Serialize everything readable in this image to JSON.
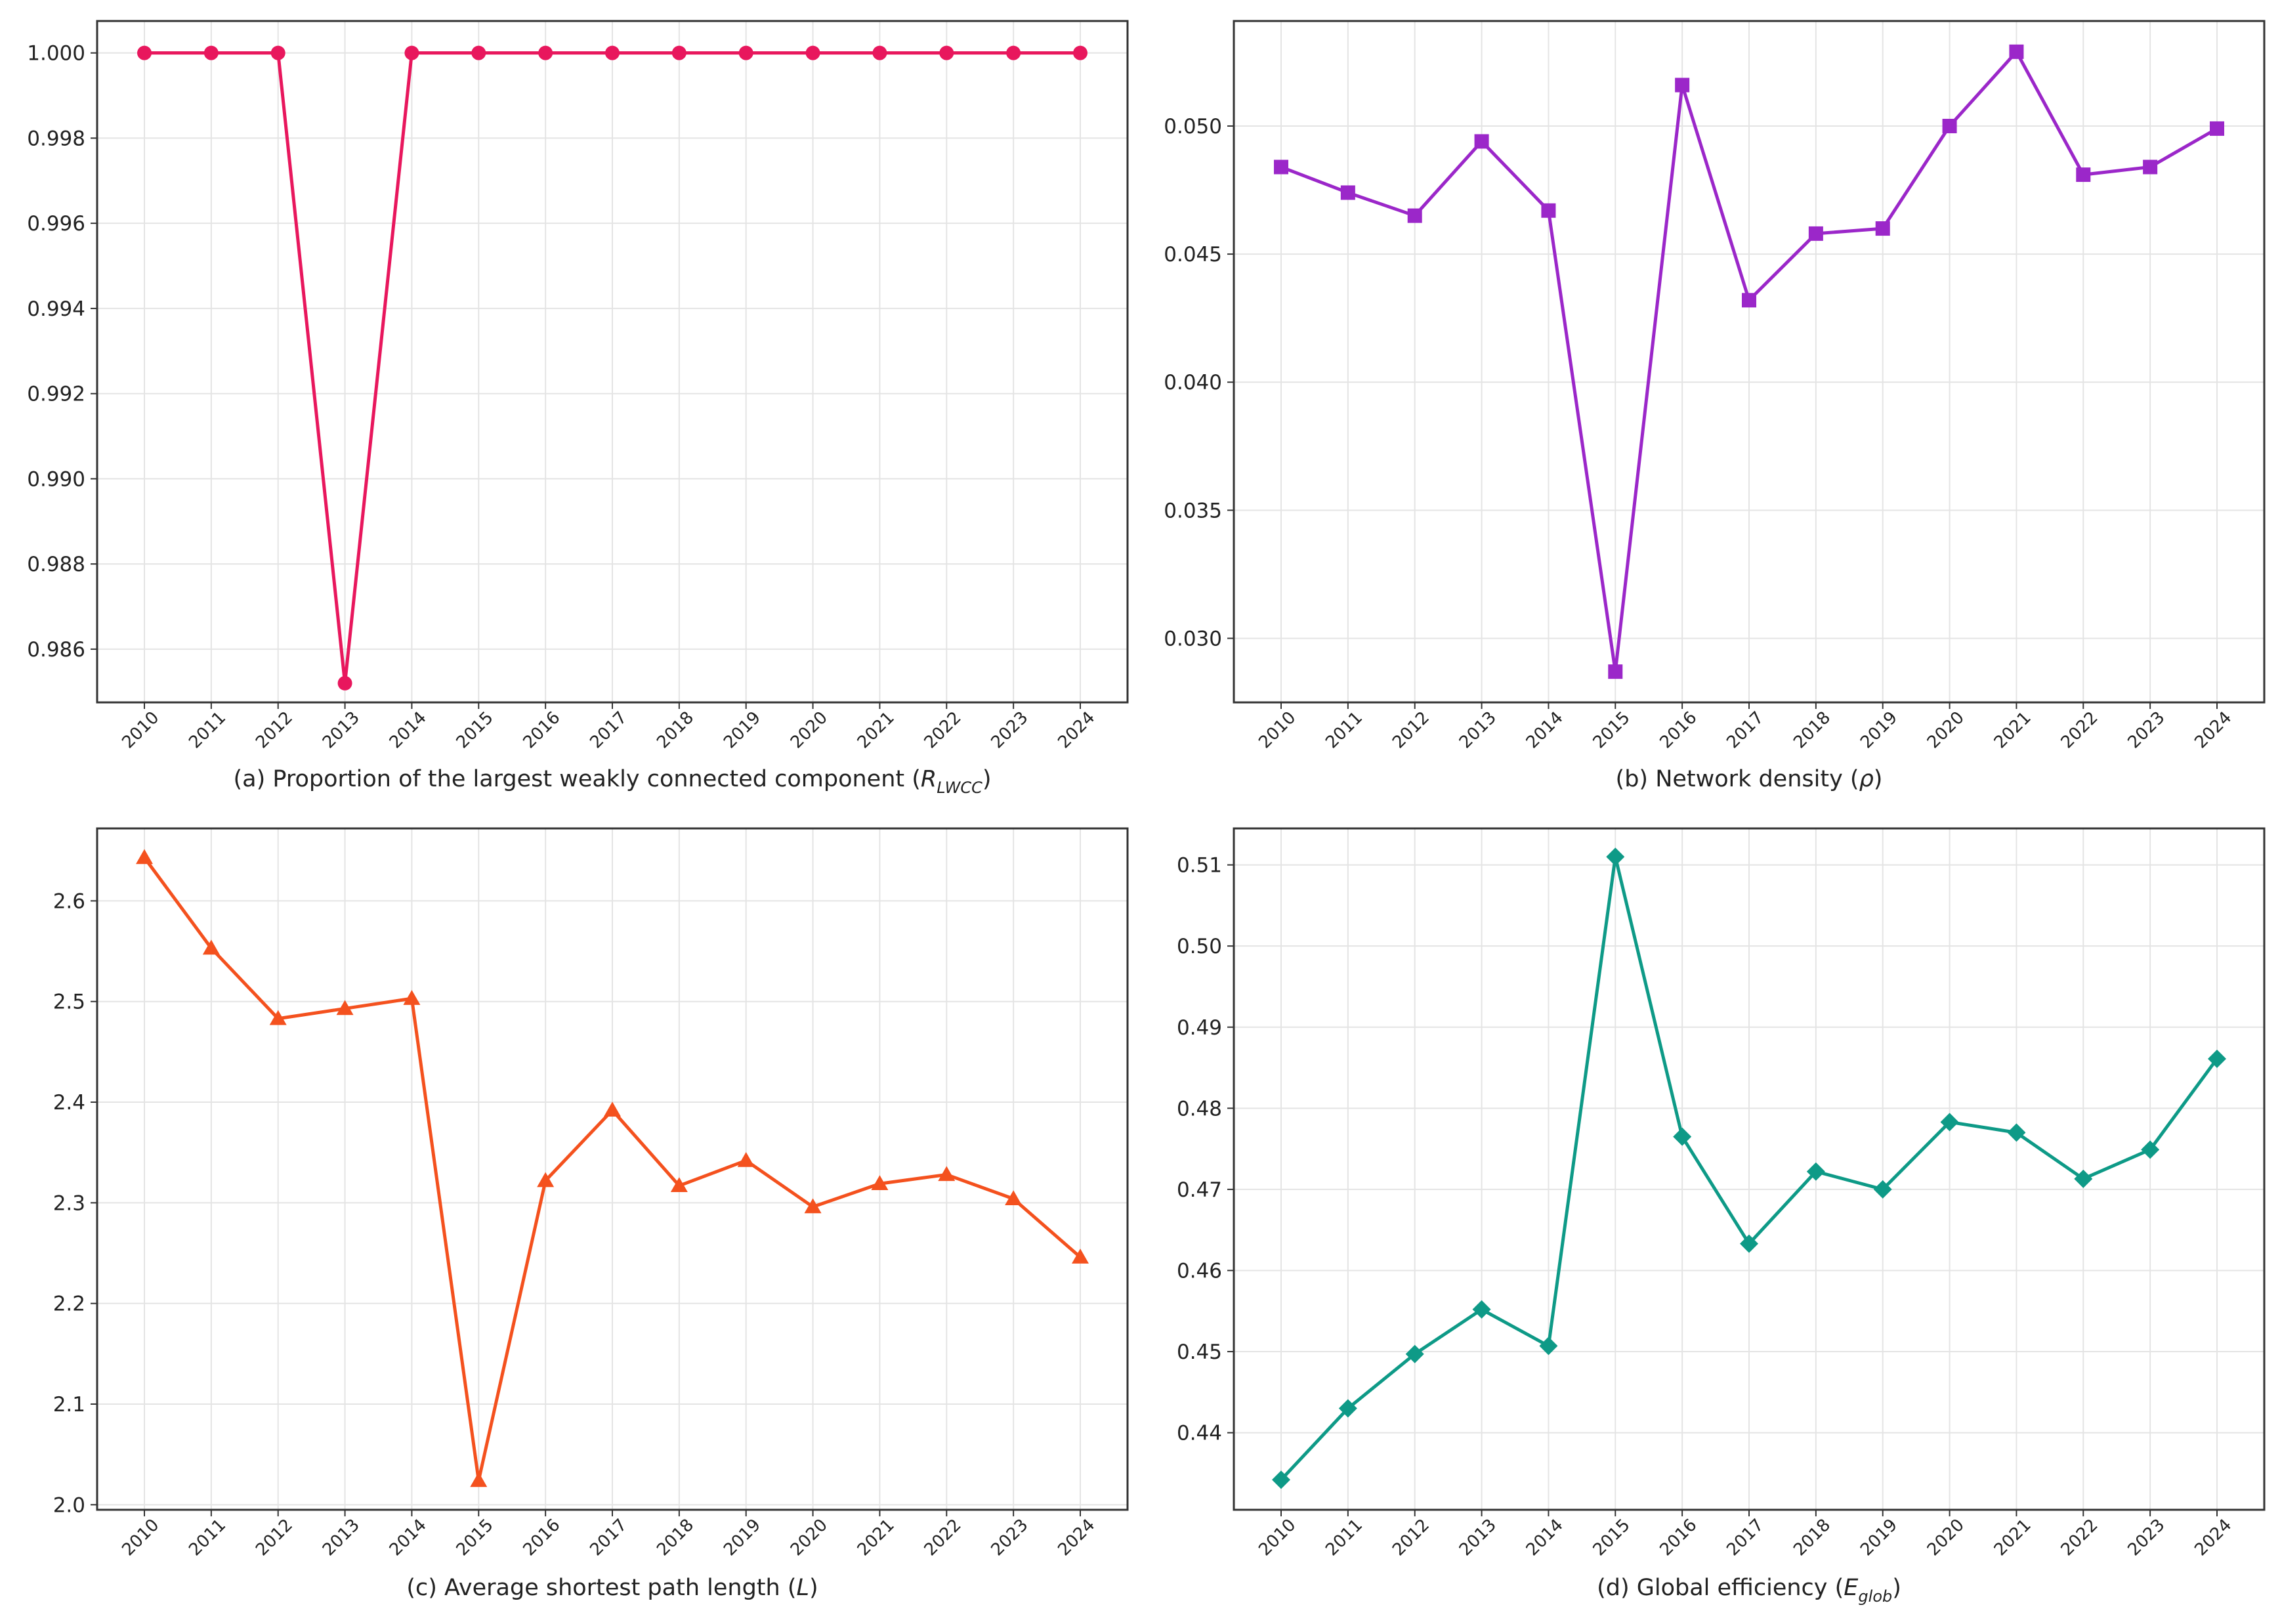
{
  "figure": {
    "background": "#ffffff",
    "grid": true
  },
  "chart_data": [
    {
      "id": "a",
      "type": "line",
      "marker": "circle",
      "color": "#e8175d",
      "caption": {
        "prefix": "(a) Proportion of the largest weakly connected component (",
        "symbol": "R",
        "subscript": "LWCC",
        "suffix": ")"
      },
      "x": [
        "2010",
        "2011",
        "2012",
        "2013",
        "2014",
        "2015",
        "2016",
        "2017",
        "2018",
        "2019",
        "2020",
        "2021",
        "2022",
        "2023",
        "2024"
      ],
      "values": [
        1.0,
        1.0,
        1.0,
        0.9852,
        1.0,
        1.0,
        1.0,
        1.0,
        1.0,
        1.0,
        1.0,
        1.0,
        1.0,
        1.0,
        1.0
      ],
      "yticks": [
        "0.986",
        "0.988",
        "0.990",
        "0.992",
        "0.994",
        "0.996",
        "0.998",
        "1.000"
      ],
      "ylim": [
        0.98475,
        1.00075
      ]
    },
    {
      "id": "b",
      "type": "line",
      "marker": "square",
      "color": "#9b27c9",
      "caption": {
        "prefix": "(b) Network density (",
        "symbol": "ρ",
        "subscript": "",
        "suffix": ")"
      },
      "x": [
        "2010",
        "2011",
        "2012",
        "2013",
        "2014",
        "2015",
        "2016",
        "2017",
        "2018",
        "2019",
        "2020",
        "2021",
        "2022",
        "2023",
        "2024"
      ],
      "values": [
        0.0484,
        0.0474,
        0.0465,
        0.0494,
        0.0467,
        0.0287,
        0.0516,
        0.0432,
        0.0458,
        0.046,
        0.05,
        0.0529,
        0.0481,
        0.0484,
        0.0499
      ],
      "yticks": [
        "0.030",
        "0.035",
        "0.040",
        "0.045",
        "0.050"
      ],
      "ylim": [
        0.0275,
        0.0541
      ]
    },
    {
      "id": "c",
      "type": "line",
      "marker": "triangle",
      "color": "#f4511e",
      "caption": {
        "prefix": "(c) Average shortest path length (",
        "symbol": "L",
        "subscript": "",
        "suffix": ")"
      },
      "x": [
        "2010",
        "2011",
        "2012",
        "2013",
        "2014",
        "2015",
        "2016",
        "2017",
        "2018",
        "2019",
        "2020",
        "2021",
        "2022",
        "2023",
        "2024"
      ],
      "values": [
        2.643,
        2.553,
        2.483,
        2.493,
        2.503,
        2.024,
        2.322,
        2.392,
        2.317,
        2.342,
        2.296,
        2.319,
        2.328,
        2.304,
        2.246
      ],
      "yticks": [
        "2.0",
        "2.1",
        "2.2",
        "2.3",
        "2.4",
        "2.5",
        "2.6"
      ],
      "ylim": [
        1.995,
        2.672
      ]
    },
    {
      "id": "d",
      "type": "line",
      "marker": "diamond",
      "color": "#0e9a87",
      "caption": {
        "prefix": "(d) Global efficiency (",
        "symbol": "E",
        "subscript": "glob",
        "suffix": ")"
      },
      "x": [
        "2010",
        "2011",
        "2012",
        "2013",
        "2014",
        "2015",
        "2016",
        "2017",
        "2018",
        "2019",
        "2020",
        "2021",
        "2022",
        "2023",
        "2024"
      ],
      "values": [
        0.4342,
        0.443,
        0.4497,
        0.4552,
        0.4507,
        0.511,
        0.4765,
        0.4633,
        0.4722,
        0.47,
        0.4783,
        0.477,
        0.4713,
        0.4749,
        0.4861
      ],
      "yticks": [
        "0.44",
        "0.45",
        "0.46",
        "0.47",
        "0.48",
        "0.49",
        "0.50",
        "0.51"
      ],
      "ylim": [
        0.4305,
        0.5145
      ]
    }
  ]
}
